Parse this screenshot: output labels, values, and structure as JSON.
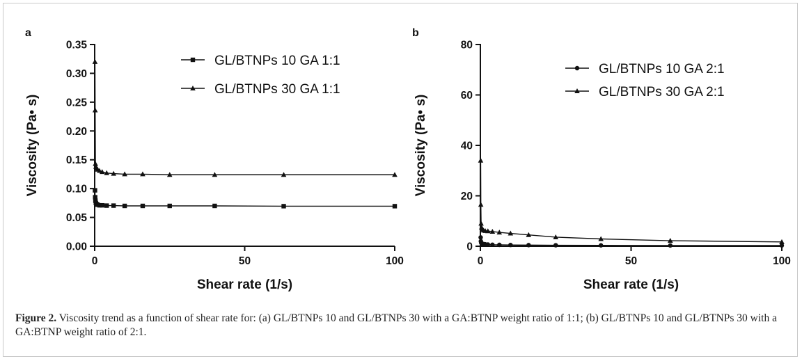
{
  "chart_data": [
    {
      "panel_label": "a",
      "type": "line",
      "xlabel": "Shear rate (1/s)",
      "ylabel": "Viscosity (Pa• s)",
      "xlim": [
        0,
        100
      ],
      "ylim": [
        0,
        0.35
      ],
      "xticks": [
        0,
        50,
        100
      ],
      "yticks": [
        0.0,
        0.05,
        0.1,
        0.15,
        0.2,
        0.25,
        0.3,
        0.35
      ],
      "ytick_labels": [
        "0.00",
        "0.05",
        "0.10",
        "0.15",
        "0.20",
        "0.25",
        "0.30",
        "0.35"
      ],
      "xtick_labels": [
        "0",
        "50",
        "100"
      ],
      "legend_position": "top-right",
      "series": [
        {
          "name": "GL/BTNPs 10 GA 1:1",
          "marker": "square",
          "x": [
            0.1,
            0.16,
            0.25,
            0.4,
            0.63,
            1.0,
            1.6,
            2.5,
            4.0,
            6.3,
            10,
            16,
            25,
            40,
            63,
            100
          ],
          "y": [
            0.097,
            0.085,
            0.079,
            0.075,
            0.073,
            0.072,
            0.071,
            0.071,
            0.0705,
            0.0705,
            0.07,
            0.07,
            0.07,
            0.07,
            0.0695,
            0.0695
          ]
        },
        {
          "name": "GL/BTNPs 30 GA 1:1",
          "marker": "triangle",
          "x": [
            0.1,
            0.16,
            0.25,
            0.4,
            0.63,
            1.0,
            1.6,
            2.5,
            4.0,
            6.3,
            10,
            16,
            25,
            40,
            63,
            100
          ],
          "y": [
            0.32,
            0.236,
            0.143,
            0.138,
            0.135,
            0.133,
            0.131,
            0.129,
            0.127,
            0.126,
            0.125,
            0.125,
            0.124,
            0.124,
            0.124,
            0.124
          ]
        }
      ]
    },
    {
      "panel_label": "b",
      "type": "line",
      "xlabel": "Shear rate (1/s)",
      "ylabel": "Viscosity (Pa• s)",
      "xlim": [
        0,
        100
      ],
      "ylim": [
        0,
        80
      ],
      "xticks": [
        0,
        50,
        100
      ],
      "yticks": [
        0,
        20,
        40,
        60,
        80
      ],
      "ytick_labels": [
        "0",
        "20",
        "40",
        "60",
        "80"
      ],
      "xtick_labels": [
        "0",
        "50",
        "100"
      ],
      "legend_position": "top-right",
      "series": [
        {
          "name": "GL/BTNPs 10 GA 2:1",
          "marker": "circle",
          "x": [
            0.1,
            0.16,
            0.25,
            0.4,
            0.63,
            1.0,
            1.6,
            2.5,
            4.0,
            6.3,
            10,
            16,
            25,
            40,
            63,
            100
          ],
          "y": [
            3.5,
            2.0,
            1.4,
            1.2,
            1.0,
            0.9,
            0.8,
            0.7,
            0.6,
            0.55,
            0.5,
            0.45,
            0.4,
            0.35,
            0.3,
            0.3
          ]
        },
        {
          "name": "GL/BTNPs 30 GA 2:1",
          "marker": "triangle",
          "x": [
            0.1,
            0.16,
            0.25,
            0.4,
            0.63,
            1.0,
            1.6,
            2.5,
            4.0,
            6.3,
            10,
            16,
            25,
            40,
            63,
            100
          ],
          "y": [
            34,
            16.5,
            9,
            7.5,
            6.8,
            6.3,
            6.1,
            6.0,
            5.8,
            5.5,
            5.1,
            4.5,
            3.6,
            2.9,
            2.2,
            1.7
          ]
        }
      ]
    }
  ],
  "caption": {
    "label": "Figure 2.",
    "text": " Viscosity trend as a function of shear rate for: (a) GL/BTNPs 10 and GL/BTNPs 30 with a GA:BTNP weight ratio of 1:1; (b) GL/BTNPs 10 and GL/BTNPs 30 with a GA:BTNP weight ratio of 2:1."
  }
}
